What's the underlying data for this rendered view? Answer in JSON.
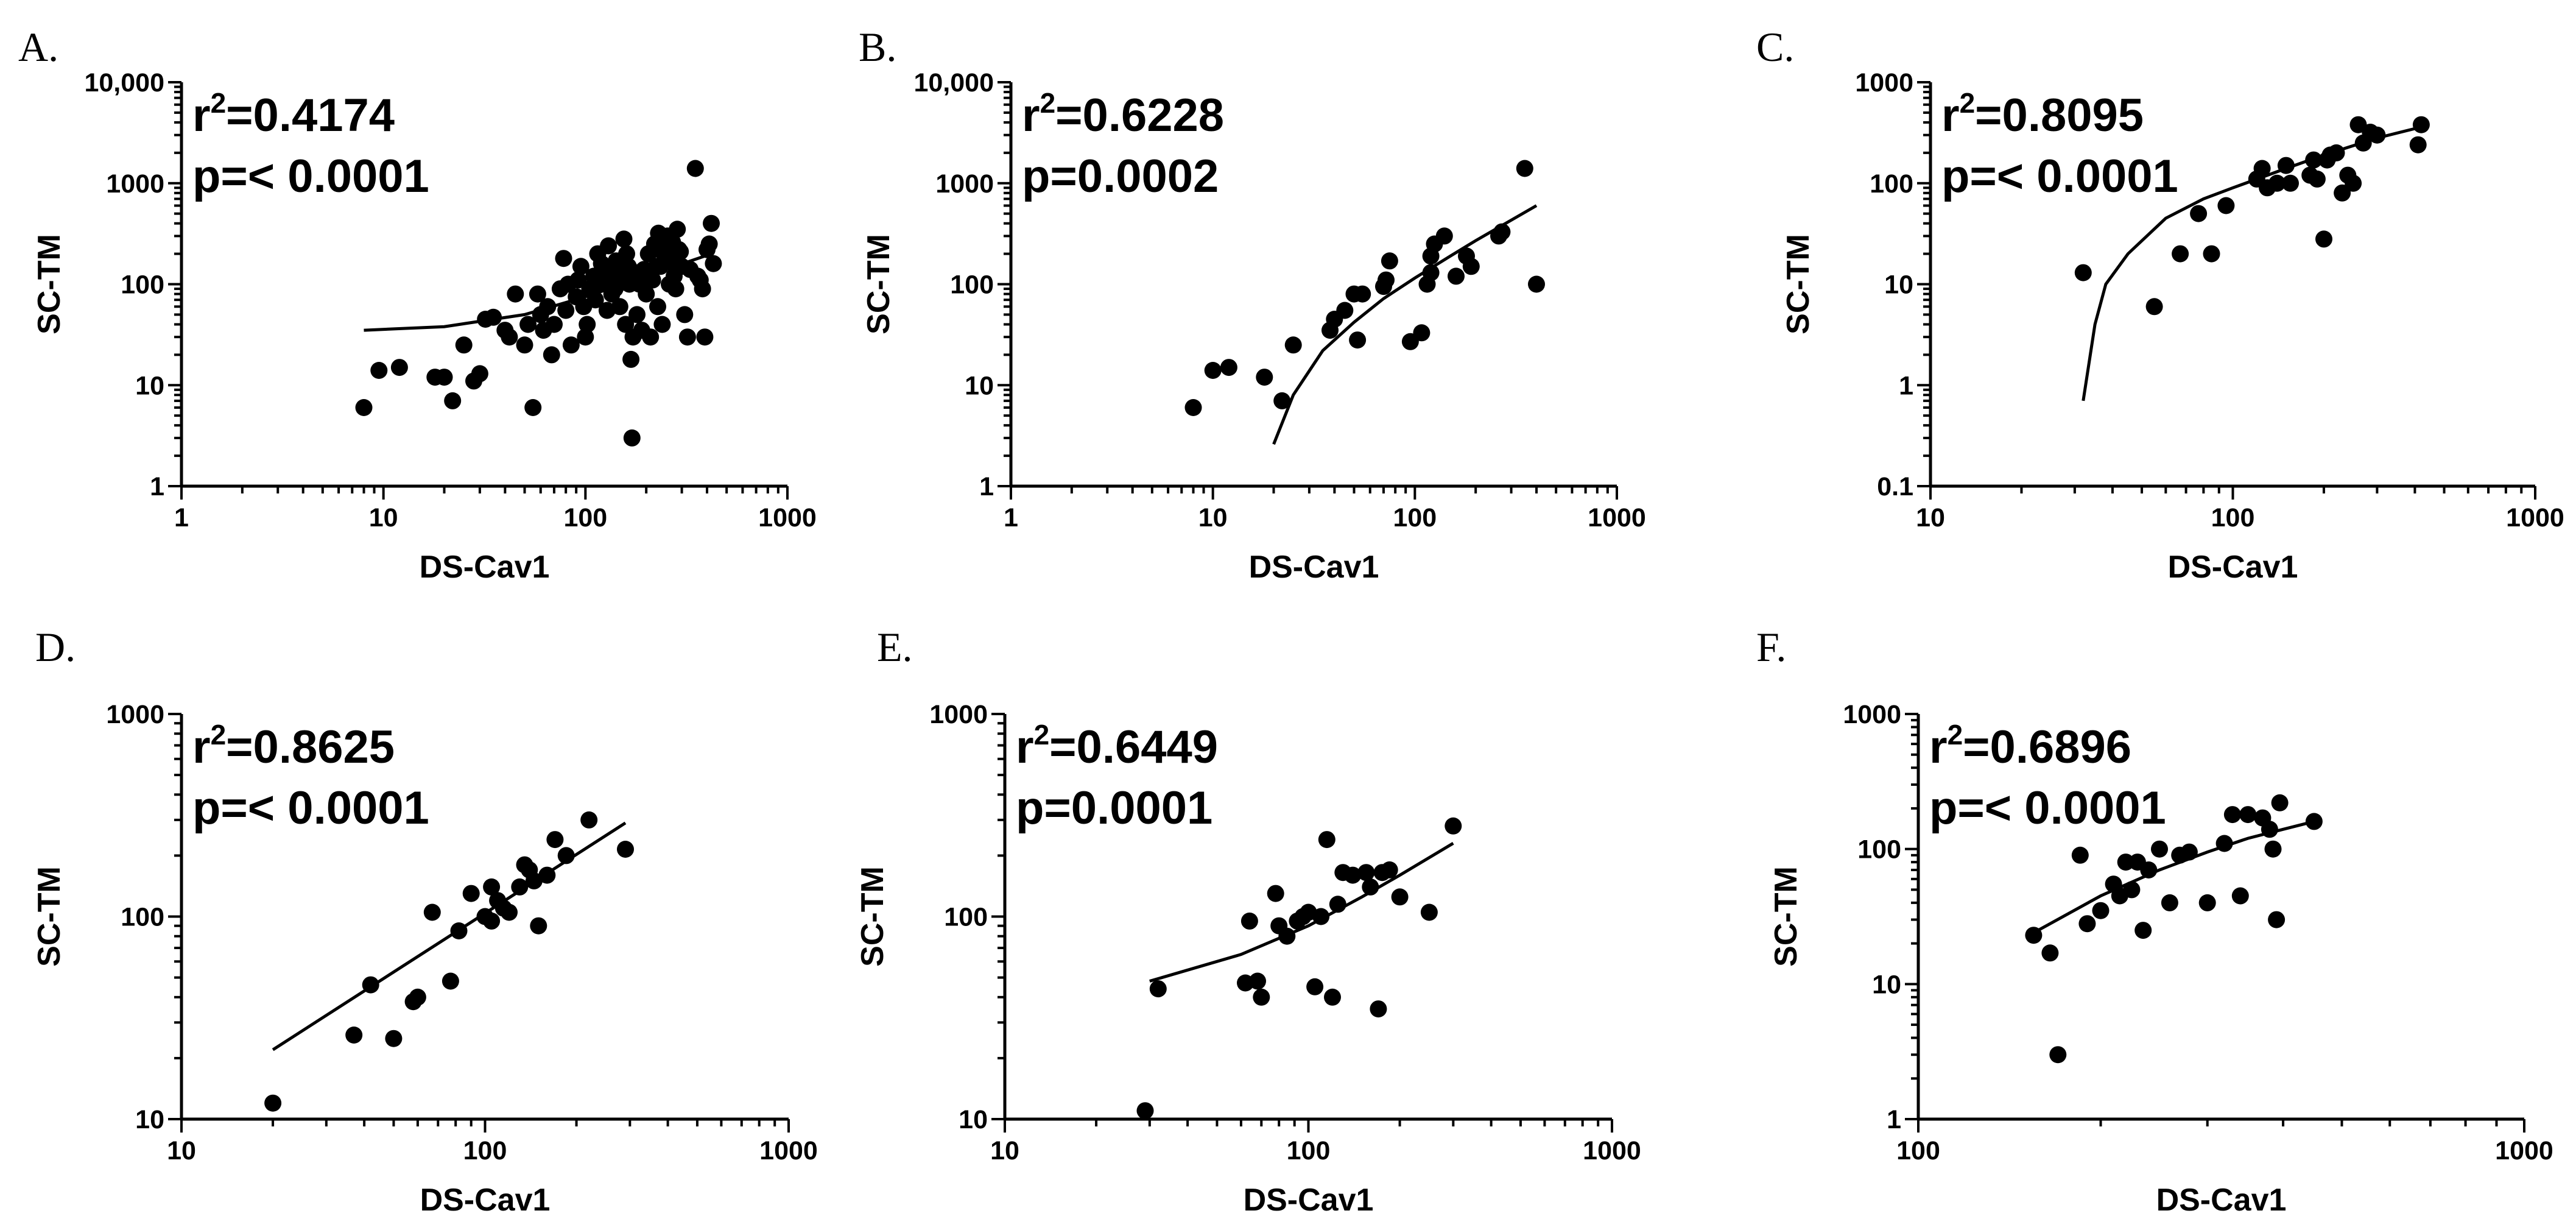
{
  "figure": {
    "background": "#ffffff",
    "ink": "#000000"
  },
  "chart_data": [
    {
      "panel": "A.",
      "type": "scatter",
      "xscale": "log",
      "yscale": "log",
      "xlabel": "DS-Cav1",
      "ylabel": "SC-TM",
      "xlim": [
        1,
        1000
      ],
      "ylim": [
        1,
        10000
      ],
      "xticks": [
        1,
        10,
        100,
        1000
      ],
      "xtick_labels": [
        "1",
        "10",
        "100",
        "1000"
      ],
      "yticks": [
        1,
        10,
        100,
        1000,
        10000
      ],
      "ytick_labels": [
        "1",
        "10",
        "100",
        "1000",
        "10,000"
      ],
      "r2_label": "=0.4174",
      "p_label": "p=< 0.0001",
      "fit": {
        "x": [
          8,
          20,
          50,
          100,
          200,
          420
        ],
        "y": [
          35,
          38,
          50,
          75,
          120,
          200
        ]
      },
      "points": [
        [
          8,
          6
        ],
        [
          9.5,
          14
        ],
        [
          12,
          15
        ],
        [
          18,
          12
        ],
        [
          20,
          12
        ],
        [
          22,
          7
        ],
        [
          25,
          25
        ],
        [
          28,
          11
        ],
        [
          30,
          13
        ],
        [
          32,
          45
        ],
        [
          35,
          47
        ],
        [
          40,
          35
        ],
        [
          42,
          30
        ],
        [
          45,
          80
        ],
        [
          50,
          25
        ],
        [
          55,
          6
        ],
        [
          52,
          40
        ],
        [
          58,
          80
        ],
        [
          60,
          50
        ],
        [
          62,
          35
        ],
        [
          65,
          60
        ],
        [
          68,
          20
        ],
        [
          70,
          40
        ],
        [
          75,
          90
        ],
        [
          78,
          180
        ],
        [
          80,
          55
        ],
        [
          82,
          100
        ],
        [
          85,
          25
        ],
        [
          90,
          75
        ],
        [
          92,
          110
        ],
        [
          95,
          150
        ],
        [
          98,
          60
        ],
        [
          100,
          30
        ],
        [
          102,
          40
        ],
        [
          105,
          90
        ],
        [
          110,
          120
        ],
        [
          112,
          70
        ],
        [
          115,
          200
        ],
        [
          118,
          100
        ],
        [
          120,
          160
        ],
        [
          122,
          130
        ],
        [
          125,
          110
        ],
        [
          128,
          55
        ],
        [
          130,
          240
        ],
        [
          133,
          140
        ],
        [
          135,
          80
        ],
        [
          138,
          120
        ],
        [
          140,
          90
        ],
        [
          142,
          170
        ],
        [
          145,
          100
        ],
        [
          148,
          60
        ],
        [
          150,
          130
        ],
        [
          155,
          280
        ],
        [
          158,
          40
        ],
        [
          160,
          200
        ],
        [
          163,
          150
        ],
        [
          165,
          100
        ],
        [
          168,
          18
        ],
        [
          170,
          3
        ],
        [
          172,
          30
        ],
        [
          175,
          120
        ],
        [
          178,
          130
        ],
        [
          180,
          50
        ],
        [
          185,
          100
        ],
        [
          188,
          110
        ],
        [
          190,
          35
        ],
        [
          195,
          140
        ],
        [
          200,
          80
        ],
        [
          205,
          200
        ],
        [
          210,
          30
        ],
        [
          215,
          110
        ],
        [
          220,
          250
        ],
        [
          225,
          150
        ],
        [
          228,
          60
        ],
        [
          230,
          320
        ],
        [
          235,
          150
        ],
        [
          240,
          40
        ],
        [
          245,
          200
        ],
        [
          250,
          280
        ],
        [
          255,
          300
        ],
        [
          260,
          100
        ],
        [
          265,
          170
        ],
        [
          270,
          260
        ],
        [
          275,
          120
        ],
        [
          280,
          90
        ],
        [
          285,
          350
        ],
        [
          290,
          220
        ],
        [
          295,
          210
        ],
        [
          300,
          150
        ],
        [
          310,
          50
        ],
        [
          320,
          30
        ],
        [
          330,
          140
        ],
        [
          350,
          1400
        ],
        [
          360,
          120
        ],
        [
          370,
          110
        ],
        [
          380,
          90
        ],
        [
          390,
          30
        ],
        [
          400,
          220
        ],
        [
          410,
          250
        ],
        [
          420,
          400
        ],
        [
          430,
          160
        ]
      ]
    },
    {
      "panel": "B.",
      "type": "scatter",
      "xscale": "log",
      "yscale": "log",
      "xlabel": "DS-Cav1",
      "ylabel": "SC-TM",
      "xlim": [
        1,
        1000
      ],
      "ylim": [
        1,
        10000
      ],
      "xticks": [
        1,
        10,
        100,
        1000
      ],
      "xtick_labels": [
        "1",
        "10",
        "100",
        "1000"
      ],
      "yticks": [
        1,
        10,
        100,
        1000,
        10000
      ],
      "ytick_labels": [
        "1",
        "10",
        "100",
        "1000",
        "10,000"
      ],
      "r2_label": "=0.6228",
      "p_label": "p=0.0002",
      "fit": {
        "x": [
          20,
          25,
          35,
          50,
          70,
          100,
          150,
          200,
          400
        ],
        "y": [
          2.6,
          8,
          22,
          42,
          72,
          115,
          190,
          270,
          600
        ]
      },
      "points": [
        [
          8,
          6
        ],
        [
          10,
          14
        ],
        [
          12,
          15
        ],
        [
          18,
          12
        ],
        [
          22,
          7
        ],
        [
          25,
          25
        ],
        [
          38,
          35
        ],
        [
          40,
          45
        ],
        [
          45,
          55
        ],
        [
          50,
          80
        ],
        [
          52,
          28
        ],
        [
          55,
          80
        ],
        [
          70,
          95
        ],
        [
          72,
          110
        ],
        [
          75,
          170
        ],
        [
          95,
          27
        ],
        [
          108,
          33
        ],
        [
          115,
          100
        ],
        [
          120,
          130
        ],
        [
          120,
          190
        ],
        [
          125,
          250
        ],
        [
          140,
          300
        ],
        [
          160,
          120
        ],
        [
          180,
          190
        ],
        [
          190,
          150
        ],
        [
          260,
          300
        ],
        [
          270,
          330
        ],
        [
          350,
          1400
        ],
        [
          400,
          100
        ]
      ]
    },
    {
      "panel": "C.",
      "type": "scatter",
      "xscale": "log",
      "yscale": "log",
      "xlabel": "DS-Cav1",
      "ylabel": "SC-TM",
      "xlim": [
        10,
        1000
      ],
      "ylim": [
        0.1,
        1000
      ],
      "xticks": [
        10,
        100,
        1000
      ],
      "xtick_labels": [
        "10",
        "100",
        "1000"
      ],
      "yticks": [
        0.1,
        1,
        10,
        100,
        1000
      ],
      "ytick_labels": [
        "0.1",
        "1",
        "10",
        "100",
        "1000"
      ],
      "r2_label": "=0.8095",
      "p_label": "p=< 0.0001",
      "fit": {
        "x": [
          32,
          35,
          38,
          45,
          60,
          80,
          100,
          150,
          200,
          300,
          420
        ],
        "y": [
          0.7,
          4,
          10,
          20,
          45,
          70,
          90,
          140,
          190,
          280,
          360
        ]
      },
      "points": [
        [
          32,
          13
        ],
        [
          55,
          6
        ],
        [
          67,
          20
        ],
        [
          77,
          50
        ],
        [
          85,
          20
        ],
        [
          95,
          60
        ],
        [
          120,
          110
        ],
        [
          125,
          140
        ],
        [
          130,
          90
        ],
        [
          140,
          100
        ],
        [
          150,
          150
        ],
        [
          155,
          100
        ],
        [
          180,
          120
        ],
        [
          185,
          170
        ],
        [
          190,
          110
        ],
        [
          200,
          28
        ],
        [
          205,
          170
        ],
        [
          210,
          190
        ],
        [
          220,
          200
        ],
        [
          230,
          80
        ],
        [
          240,
          120
        ],
        [
          250,
          100
        ],
        [
          260,
          380
        ],
        [
          270,
          250
        ],
        [
          285,
          320
        ],
        [
          300,
          300
        ],
        [
          410,
          240
        ],
        [
          420,
          380
        ]
      ]
    },
    {
      "panel": "D.",
      "type": "scatter",
      "xscale": "log",
      "yscale": "log",
      "xlabel": "DS-Cav1",
      "ylabel": "SC-TM",
      "xlim": [
        10,
        1000
      ],
      "ylim": [
        10,
        1000
      ],
      "xticks": [
        10,
        100,
        1000
      ],
      "xtick_labels": [
        "10",
        "100",
        "1000"
      ],
      "yticks": [
        10,
        100,
        1000
      ],
      "ytick_labels": [
        "10",
        "100",
        "1000"
      ],
      "r2_label": "=0.8625",
      "p_label": "p=< 0.0001",
      "fit": {
        "x": [
          20,
          290
        ],
        "y": [
          22,
          290
        ]
      },
      "points": [
        [
          20,
          12
        ],
        [
          37,
          26
        ],
        [
          42,
          46
        ],
        [
          50,
          25
        ],
        [
          58,
          38
        ],
        [
          60,
          40
        ],
        [
          67,
          105
        ],
        [
          77,
          48
        ],
        [
          82,
          85
        ],
        [
          90,
          130
        ],
        [
          100,
          100
        ],
        [
          105,
          140
        ],
        [
          105,
          95
        ],
        [
          110,
          120
        ],
        [
          115,
          110
        ],
        [
          120,
          105
        ],
        [
          130,
          140
        ],
        [
          135,
          180
        ],
        [
          140,
          170
        ],
        [
          145,
          150
        ],
        [
          150,
          90
        ],
        [
          160,
          160
        ],
        [
          170,
          240
        ],
        [
          185,
          200
        ],
        [
          220,
          300
        ],
        [
          290,
          215
        ]
      ]
    },
    {
      "panel": "E.",
      "type": "scatter",
      "xscale": "log",
      "yscale": "log",
      "xlabel": "DS-Cav1",
      "ylabel": "SC-TM",
      "xlim": [
        10,
        1000
      ],
      "ylim": [
        10,
        1000
      ],
      "xticks": [
        10,
        100,
        1000
      ],
      "xtick_labels": [
        "10",
        "100",
        "1000"
      ],
      "yticks": [
        10,
        100,
        1000
      ],
      "ytick_labels": [
        "10",
        "100",
        "1000"
      ],
      "r2_label": "=0.6449",
      "p_label": "p=0.0001",
      "fit": {
        "x": [
          30,
          60,
          100,
          150,
          200,
          300
        ],
        "y": [
          48,
          65,
          90,
          125,
          160,
          230
        ]
      },
      "points": [
        [
          29,
          11
        ],
        [
          32,
          44
        ],
        [
          62,
          47
        ],
        [
          64,
          95
        ],
        [
          68,
          48
        ],
        [
          70,
          40
        ],
        [
          78,
          130
        ],
        [
          80,
          90
        ],
        [
          85,
          80
        ],
        [
          92,
          95
        ],
        [
          96,
          100
        ],
        [
          100,
          105
        ],
        [
          105,
          45
        ],
        [
          110,
          100
        ],
        [
          115,
          240
        ],
        [
          120,
          40
        ],
        [
          125,
          115
        ],
        [
          130,
          165
        ],
        [
          140,
          160
        ],
        [
          155,
          165
        ],
        [
          160,
          140
        ],
        [
          170,
          35
        ],
        [
          175,
          165
        ],
        [
          185,
          170
        ],
        [
          200,
          125
        ],
        [
          250,
          105
        ],
        [
          300,
          280
        ]
      ]
    },
    {
      "panel": "F.",
      "type": "scatter",
      "xscale": "log",
      "yscale": "log",
      "xlabel": "DS-Cav1",
      "ylabel": "SC-TM",
      "xlim": [
        100,
        1000
      ],
      "ylim": [
        1,
        1000
      ],
      "xticks": [
        100,
        1000
      ],
      "xtick_labels": [
        "100",
        "1000"
      ],
      "yticks": [
        1,
        10,
        100,
        1000
      ],
      "ytick_labels": [
        "1",
        "10",
        "100",
        "1000"
      ],
      "r2_label": "=0.6896",
      "p_label": "p=< 0.0001",
      "fit": {
        "x": [
          155,
          200,
          250,
          300,
          350,
          400,
          450
        ],
        "y": [
          24,
          45,
          70,
          95,
          120,
          140,
          160
        ]
      },
      "points": [
        [
          155,
          23
        ],
        [
          165,
          17
        ],
        [
          170,
          3
        ],
        [
          185,
          90
        ],
        [
          190,
          28
        ],
        [
          200,
          35
        ],
        [
          210,
          55
        ],
        [
          215,
          45
        ],
        [
          220,
          80
        ],
        [
          225,
          50
        ],
        [
          230,
          80
        ],
        [
          235,
          25
        ],
        [
          240,
          70
        ],
        [
          250,
          100
        ],
        [
          260,
          40
        ],
        [
          270,
          90
        ],
        [
          280,
          95
        ],
        [
          300,
          40
        ],
        [
          320,
          110
        ],
        [
          330,
          180
        ],
        [
          340,
          45
        ],
        [
          350,
          180
        ],
        [
          370,
          170
        ],
        [
          380,
          140
        ],
        [
          385,
          100
        ],
        [
          390,
          30
        ],
        [
          395,
          220
        ],
        [
          450,
          160
        ]
      ]
    }
  ]
}
